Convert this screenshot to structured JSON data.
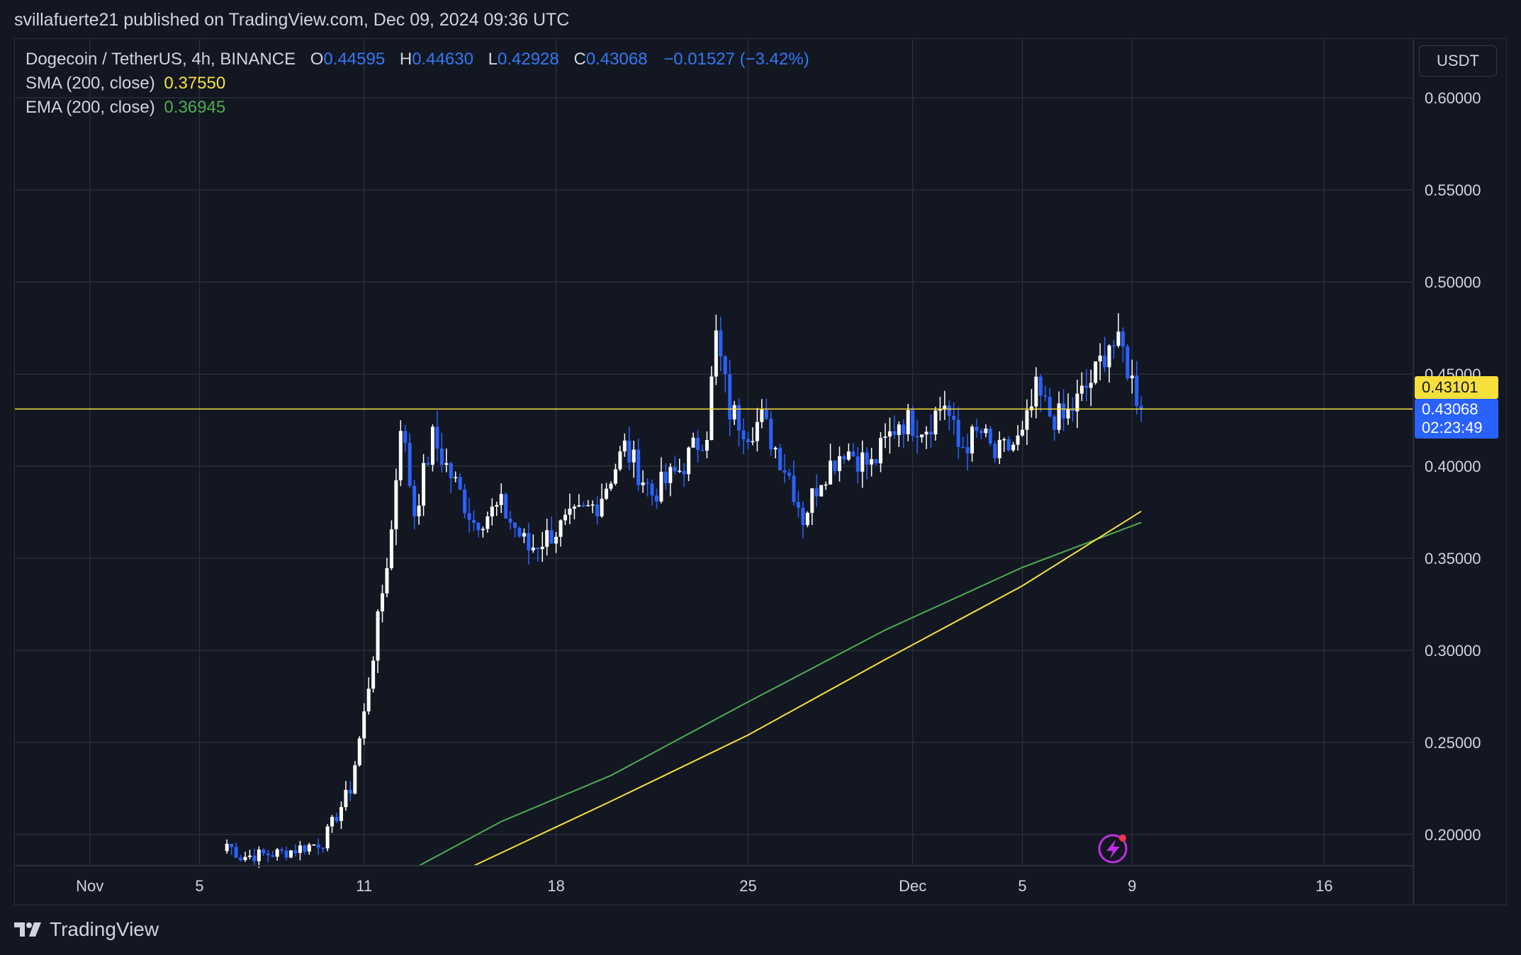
{
  "header": {
    "publisher_line": "svillafuerte21 published on TradingView.com, Dec 09, 2024 09:36 UTC"
  },
  "legend": {
    "symbol": "Dogecoin / TetherUS, 4h, BINANCE",
    "o_label": "O",
    "o_value": "0.44595",
    "h_label": "H",
    "h_value": "0.44630",
    "l_label": "L",
    "l_value": "0.42928",
    "c_label": "C",
    "c_value": "0.43068",
    "change": "−0.01527 (−3.42%)",
    "sma_label": "SMA (200, close)",
    "sma_value": "0.37550",
    "ema_label": "EMA (200, close)",
    "ema_value": "0.36945"
  },
  "price_axis": {
    "currency": "USDT",
    "horizontal_line_label": "0.43101",
    "last_price_label": "0.43068",
    "countdown": "02:23:49"
  },
  "footer": {
    "brand": "TradingView",
    "logo_icon": "tradingview-logo-icon"
  },
  "colors": {
    "background": "#131722",
    "grid": "#2a2e39",
    "up_candle": "#ffffff",
    "down_candle": "#2962ff",
    "sma": "#f7e03c",
    "ema": "#4caf50",
    "hline": "#f7e03c",
    "last_price_tag": "#2962ff",
    "hline_tag": "#f7e03c"
  },
  "chart_data": {
    "type": "candlestick",
    "title": "Dogecoin / TetherUS, 4h, BINANCE",
    "timeframe": "4h",
    "y_ticks": [
      "0.60000",
      "0.55000",
      "0.50000",
      "0.45000",
      "0.40000",
      "0.35000",
      "0.30000",
      "0.25000",
      "0.20000"
    ],
    "ylim": [
      0.183,
      0.632
    ],
    "x_ticks": [
      "Nov",
      "5",
      "11",
      "18",
      "25",
      "Dec",
      "5",
      "9",
      "16"
    ],
    "horizontal_line": 0.43101,
    "grid": true,
    "anchors": [
      [
        "2024-11-06T00:00",
        0.195
      ],
      [
        "2024-11-06T12:00",
        0.188
      ],
      [
        "2024-11-08T00:00",
        0.19
      ],
      [
        "2024-11-09T12:00",
        0.196
      ],
      [
        "2024-11-10T12:00",
        0.225
      ],
      [
        "2024-11-11T00:00",
        0.265
      ],
      [
        "2024-11-11T12:00",
        0.315
      ],
      [
        "2024-11-12T00:00",
        0.365
      ],
      [
        "2024-11-12T08:00",
        0.425
      ],
      [
        "2024-11-12T20:00",
        0.375
      ],
      [
        "2024-11-13T12:00",
        0.415
      ],
      [
        "2024-11-14T12:00",
        0.385
      ],
      [
        "2024-11-15T00:00",
        0.37
      ],
      [
        "2024-11-16T00:00",
        0.378
      ],
      [
        "2024-11-17T00:00",
        0.355
      ],
      [
        "2024-11-18T12:00",
        0.37
      ],
      [
        "2024-11-19T12:00",
        0.38
      ],
      [
        "2024-11-20T12:00",
        0.41
      ],
      [
        "2024-11-21T12:00",
        0.385
      ],
      [
        "2024-11-22T12:00",
        0.398
      ],
      [
        "2024-11-23T12:00",
        0.42
      ],
      [
        "2024-11-23T20:00",
        0.47
      ],
      [
        "2024-11-24T08:00",
        0.43
      ],
      [
        "2024-11-25T00:00",
        0.42
      ],
      [
        "2024-11-25T12:00",
        0.425
      ],
      [
        "2024-11-26T12:00",
        0.395
      ],
      [
        "2024-11-27T00:00",
        0.372
      ],
      [
        "2024-11-27T16:00",
        0.395
      ],
      [
        "2024-11-28T12:00",
        0.41
      ],
      [
        "2024-11-29T12:00",
        0.4
      ],
      [
        "2024-11-30T12:00",
        0.425
      ],
      [
        "2024-12-01T12:00",
        0.422
      ],
      [
        "2024-12-02T04:00",
        0.435
      ],
      [
        "2024-12-02T16:00",
        0.41
      ],
      [
        "2024-12-03T12:00",
        0.418
      ],
      [
        "2024-12-04T00:00",
        0.405
      ],
      [
        "2024-12-04T12:00",
        0.41
      ],
      [
        "2024-12-05T00:00",
        0.415
      ],
      [
        "2024-12-05T12:00",
        0.44
      ],
      [
        "2024-12-06T00:00",
        0.428
      ],
      [
        "2024-12-06T12:00",
        0.425
      ],
      [
        "2024-12-07T00:00",
        0.435
      ],
      [
        "2024-12-07T16:00",
        0.45
      ],
      [
        "2024-12-08T04:00",
        0.468
      ],
      [
        "2024-12-08T16:00",
        0.462
      ],
      [
        "2024-12-09T00:00",
        0.446
      ],
      [
        "2024-12-09T08:00",
        0.431
      ]
    ],
    "sma_200": {
      "name": "SMA (200, close)",
      "points": [
        [
          "2024-11-15T00:00",
          0.183
        ],
        [
          "2024-11-20T00:00",
          0.218
        ],
        [
          "2024-11-25T00:00",
          0.254
        ],
        [
          "2024-11-30T00:00",
          0.295
        ],
        [
          "2024-12-05T00:00",
          0.335
        ],
        [
          "2024-12-09T08:00",
          0.3755
        ]
      ]
    },
    "ema_200": {
      "name": "EMA (200, close)",
      "points": [
        [
          "2024-11-13T00:00",
          0.183
        ],
        [
          "2024-11-16T00:00",
          0.207
        ],
        [
          "2024-11-20T00:00",
          0.232
        ],
        [
          "2024-11-25T00:00",
          0.272
        ],
        [
          "2024-11-30T00:00",
          0.311
        ],
        [
          "2024-12-05T00:00",
          0.345
        ],
        [
          "2024-12-09T08:00",
          0.36945
        ]
      ]
    }
  }
}
